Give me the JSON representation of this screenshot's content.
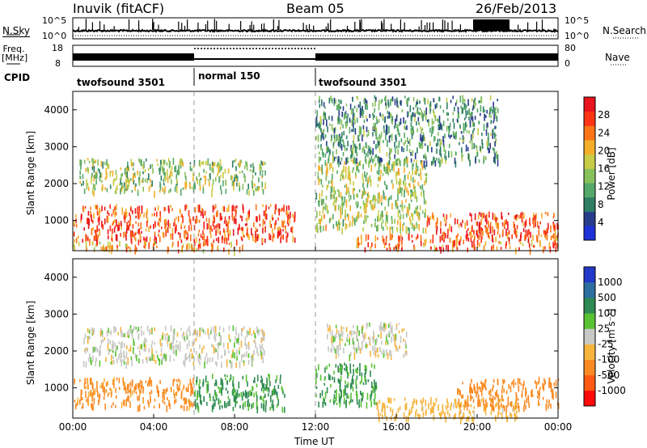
{
  "header": {
    "station": "Inuvik (fitACF)",
    "beam": "Beam 05",
    "date": "26/Feb/2013"
  },
  "top_panels": {
    "nsky_label": "N.Sky",
    "nsky_ticks": [
      "10^5",
      "10^0"
    ],
    "nsearch_label": "N.Search",
    "freq_label_line1": "Freq.",
    "freq_label_line2": "[MHz]",
    "freq_ticks": [
      "18",
      "8"
    ],
    "nave_label": "Nave",
    "nave_ticks": [
      "80",
      "0"
    ],
    "cpid_label": "CPID",
    "cpid_segments": [
      {
        "label": "twofsound 3501",
        "start_h": 0,
        "end_h": 6
      },
      {
        "label": "normal 150",
        "start_h": 6,
        "end_h": 12
      },
      {
        "label": "twofsound 3501",
        "start_h": 12,
        "end_h": 24
      }
    ]
  },
  "chart_data": [
    {
      "type": "heatmap",
      "name": "Power",
      "ylabel": "Slant Range [km]",
      "xlim": [
        0,
        24
      ],
      "ylim": [
        180,
        4500
      ],
      "yticks": [
        1000,
        2000,
        3000,
        4000
      ],
      "colorbar": {
        "label": "Power [dB]",
        "ticks": [
          "4",
          "8",
          "12",
          "16",
          "20",
          "24",
          "28"
        ],
        "colors": [
          "#1e32d8",
          "#283c8c",
          "#2e7e64",
          "#54a86a",
          "#88c05c",
          "#c8cc46",
          "#f4ae2a",
          "#fb7418",
          "#ff3414",
          "#e8141e"
        ]
      },
      "echo_regions": [
        {
          "t0": 0,
          "t1": 11,
          "r0": 480,
          "r1": 1450,
          "level": 0.85
        },
        {
          "t0": 0,
          "t1": 8.5,
          "r0": 220,
          "r1": 450,
          "level": 0.7
        },
        {
          "t0": 0.3,
          "t1": 9.5,
          "r0": 1800,
          "r1": 2700,
          "level": 0.45
        },
        {
          "t0": 12,
          "t1": 17.5,
          "r0": 800,
          "r1": 2700,
          "level": 0.5
        },
        {
          "t0": 14,
          "t1": 24,
          "r0": 250,
          "r1": 650,
          "level": 0.8
        },
        {
          "t0": 17.5,
          "t1": 24,
          "r0": 600,
          "r1": 1250,
          "level": 0.9
        },
        {
          "t0": 12,
          "t1": 21,
          "r0": 2600,
          "r1": 4400,
          "level": 0.3
        }
      ]
    },
    {
      "type": "heatmap",
      "name": "Velocity",
      "ylabel": "Slant Range [km]",
      "xlabel": "Time UT",
      "xlim": [
        0,
        24
      ],
      "ylim": [
        180,
        4500
      ],
      "xticks": [
        "00:00",
        "04:00",
        "08:00",
        "12:00",
        "16:00",
        "20:00",
        "00:00"
      ],
      "yticks": [
        1000,
        2000,
        3000,
        4000
      ],
      "colorbar": {
        "label": "Velocity [m s⁻¹]",
        "ticks": [
          "-1000",
          "-500",
          "-100",
          "-25",
          "25",
          "100",
          "500",
          "1000"
        ],
        "colors": [
          "#ff0a0a",
          "#ff5a14",
          "#fb8a22",
          "#f6b43c",
          "#c8c8c4",
          "#58c232",
          "#2e8a52",
          "#2c6e9e",
          "#2238c8"
        ]
      },
      "echo_regions": [
        {
          "t0": 0,
          "t1": 6,
          "r0": 500,
          "r1": 1300,
          "v": -150
        },
        {
          "t0": 6,
          "t1": 10.5,
          "r0": 480,
          "r1": 1400,
          "v": 120
        },
        {
          "t0": 0.5,
          "t1": 9.5,
          "r0": 1700,
          "r1": 2700,
          "v": 0
        },
        {
          "t0": 12,
          "t1": 15,
          "r0": 600,
          "r1": 1700,
          "v": 110
        },
        {
          "t0": 12.5,
          "t1": 16.5,
          "r0": 1900,
          "r1": 2800,
          "v": 0
        },
        {
          "t0": 15,
          "t1": 22,
          "r0": 200,
          "r1": 750,
          "v": -60
        },
        {
          "t0": 19,
          "t1": 24,
          "r0": 500,
          "r1": 1300,
          "v": -300
        }
      ]
    }
  ]
}
